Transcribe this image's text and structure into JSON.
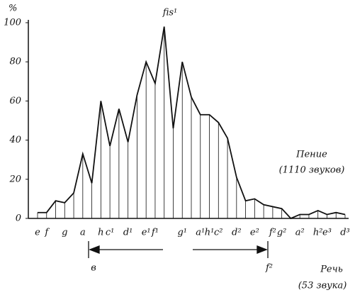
{
  "chart_data": {
    "type": "line",
    "y_label": "%",
    "categories": [
      "e",
      "f",
      null,
      "g",
      null,
      "a",
      null,
      "h",
      "c¹",
      null,
      "d¹",
      null,
      "e¹",
      "f¹",
      null,
      null,
      "g¹",
      null,
      "a¹",
      "h¹",
      "c²",
      null,
      "d²",
      null,
      "e²",
      null,
      "f²",
      "g²",
      null,
      "a²",
      null,
      "h²",
      "e³",
      null,
      "d³"
    ],
    "values": [
      3,
      3,
      9,
      8,
      13,
      33,
      18,
      60,
      37,
      56,
      39,
      63,
      80,
      69,
      98,
      46,
      80,
      62,
      53,
      53,
      49,
      41,
      21,
      9,
      10,
      7,
      6,
      5,
      0,
      2,
      2,
      4,
      2,
      3,
      2
    ],
    "color": "#111111",
    "ylim": [
      0,
      100
    ],
    "yticks": [
      0,
      20,
      40,
      60,
      80,
      100
    ],
    "annotations": [
      "fis¹",
      "Пение",
      "(1110 звуков)",
      "Речь",
      "(53 звука)",
      "в",
      "f²"
    ]
  }
}
